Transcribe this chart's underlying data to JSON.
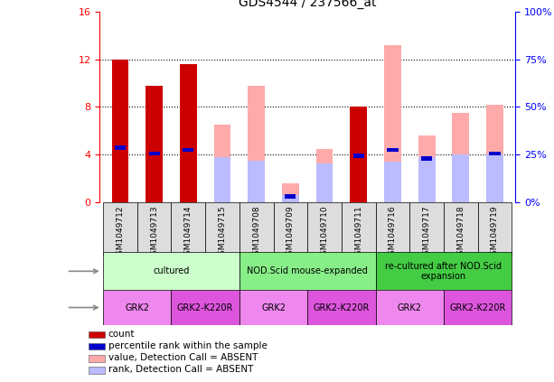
{
  "title": "GDS4544 / 237566_at",
  "samples": [
    "GSM1049712",
    "GSM1049713",
    "GSM1049714",
    "GSM1049715",
    "GSM1049708",
    "GSM1049709",
    "GSM1049710",
    "GSM1049711",
    "GSM1049716",
    "GSM1049717",
    "GSM1049718",
    "GSM1049719"
  ],
  "count_values": [
    12.0,
    9.8,
    11.6,
    0,
    0,
    0,
    0,
    8.0,
    0,
    0,
    0,
    0
  ],
  "pct_rank_values": [
    4.6,
    4.1,
    4.4,
    0,
    0,
    0.5,
    0,
    3.9,
    4.4,
    3.7,
    0,
    4.1
  ],
  "absent_value_values": [
    0,
    0,
    0,
    6.5,
    9.8,
    1.6,
    4.5,
    0,
    13.2,
    5.6,
    7.5,
    8.2
  ],
  "absent_rank_values": [
    0,
    0,
    0,
    3.8,
    3.5,
    0.6,
    3.3,
    0,
    3.4,
    3.8,
    4.0,
    4.0
  ],
  "ylim_left": [
    0,
    16
  ],
  "ylim_right": [
    0,
    100
  ],
  "yticks_left": [
    0,
    4,
    8,
    12,
    16
  ],
  "yticks_right": [
    0,
    25,
    50,
    75,
    100
  ],
  "color_count": "#cc0000",
  "color_pct": "#0000cc",
  "color_absent_value": "#ffaaaa",
  "color_absent_rank": "#bbbbff",
  "protocol_groups": [
    {
      "label": "cultured",
      "start": 0,
      "end": 3,
      "color": "#ccffcc"
    },
    {
      "label": "NOD.Scid mouse-expanded",
      "start": 4,
      "end": 7,
      "color": "#88ee88"
    },
    {
      "label": "re-cultured after NOD.Scid\nexpansion",
      "start": 8,
      "end": 11,
      "color": "#44cc44"
    }
  ],
  "genotype_groups": [
    {
      "label": "GRK2",
      "start": 0,
      "end": 1,
      "color": "#ee88ee"
    },
    {
      "label": "GRK2-K220R",
      "start": 2,
      "end": 3,
      "color": "#dd55dd"
    },
    {
      "label": "GRK2",
      "start": 4,
      "end": 5,
      "color": "#ee88ee"
    },
    {
      "label": "GRK2-K220R",
      "start": 6,
      "end": 7,
      "color": "#dd55dd"
    },
    {
      "label": "GRK2",
      "start": 8,
      "end": 9,
      "color": "#ee88ee"
    },
    {
      "label": "GRK2-K220R",
      "start": 10,
      "end": 11,
      "color": "#dd55dd"
    }
  ],
  "bar_width": 0.5,
  "legend_items": [
    {
      "label": "count",
      "color": "#cc0000"
    },
    {
      "label": "percentile rank within the sample",
      "color": "#0000cc"
    },
    {
      "label": "value, Detection Call = ABSENT",
      "color": "#ffaaaa"
    },
    {
      "label": "rank, Detection Call = ABSENT",
      "color": "#bbbbff"
    }
  ],
  "xtick_bg_color": "#dddddd",
  "left_label_color": "#888888",
  "arrow_color": "#888888"
}
